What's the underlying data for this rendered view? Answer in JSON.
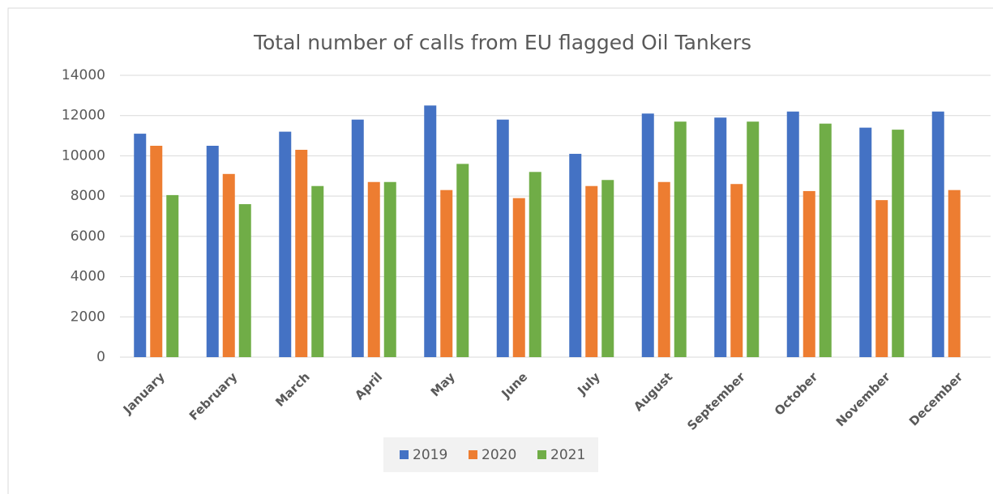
{
  "chart_data": {
    "type": "bar",
    "title": "Total number of calls from EU flagged Oil Tankers",
    "categories": [
      "January",
      "February",
      "March",
      "April",
      "May",
      "June",
      "July",
      "August",
      "September",
      "October",
      "November",
      "December"
    ],
    "series": [
      {
        "name": "2019",
        "color": "#4472c4",
        "values": [
          11100,
          10500,
          11200,
          11800,
          12500,
          11800,
          10100,
          12100,
          11900,
          12200,
          11400,
          12200
        ]
      },
      {
        "name": "2020",
        "color": "#ed7d31",
        "values": [
          10500,
          9100,
          10300,
          8700,
          8300,
          7900,
          8500,
          8700,
          8600,
          8250,
          7800,
          8300
        ]
      },
      {
        "name": "2021",
        "color": "#70ad47",
        "values": [
          8050,
          7600,
          8500,
          8700,
          9600,
          9200,
          8800,
          11700,
          11700,
          11600,
          11300,
          null
        ]
      }
    ],
    "ylim": [
      0,
      14000
    ],
    "yticks": [
      0,
      2000,
      4000,
      6000,
      8000,
      10000,
      12000,
      14000
    ],
    "grid": true,
    "legend": "bottom"
  }
}
